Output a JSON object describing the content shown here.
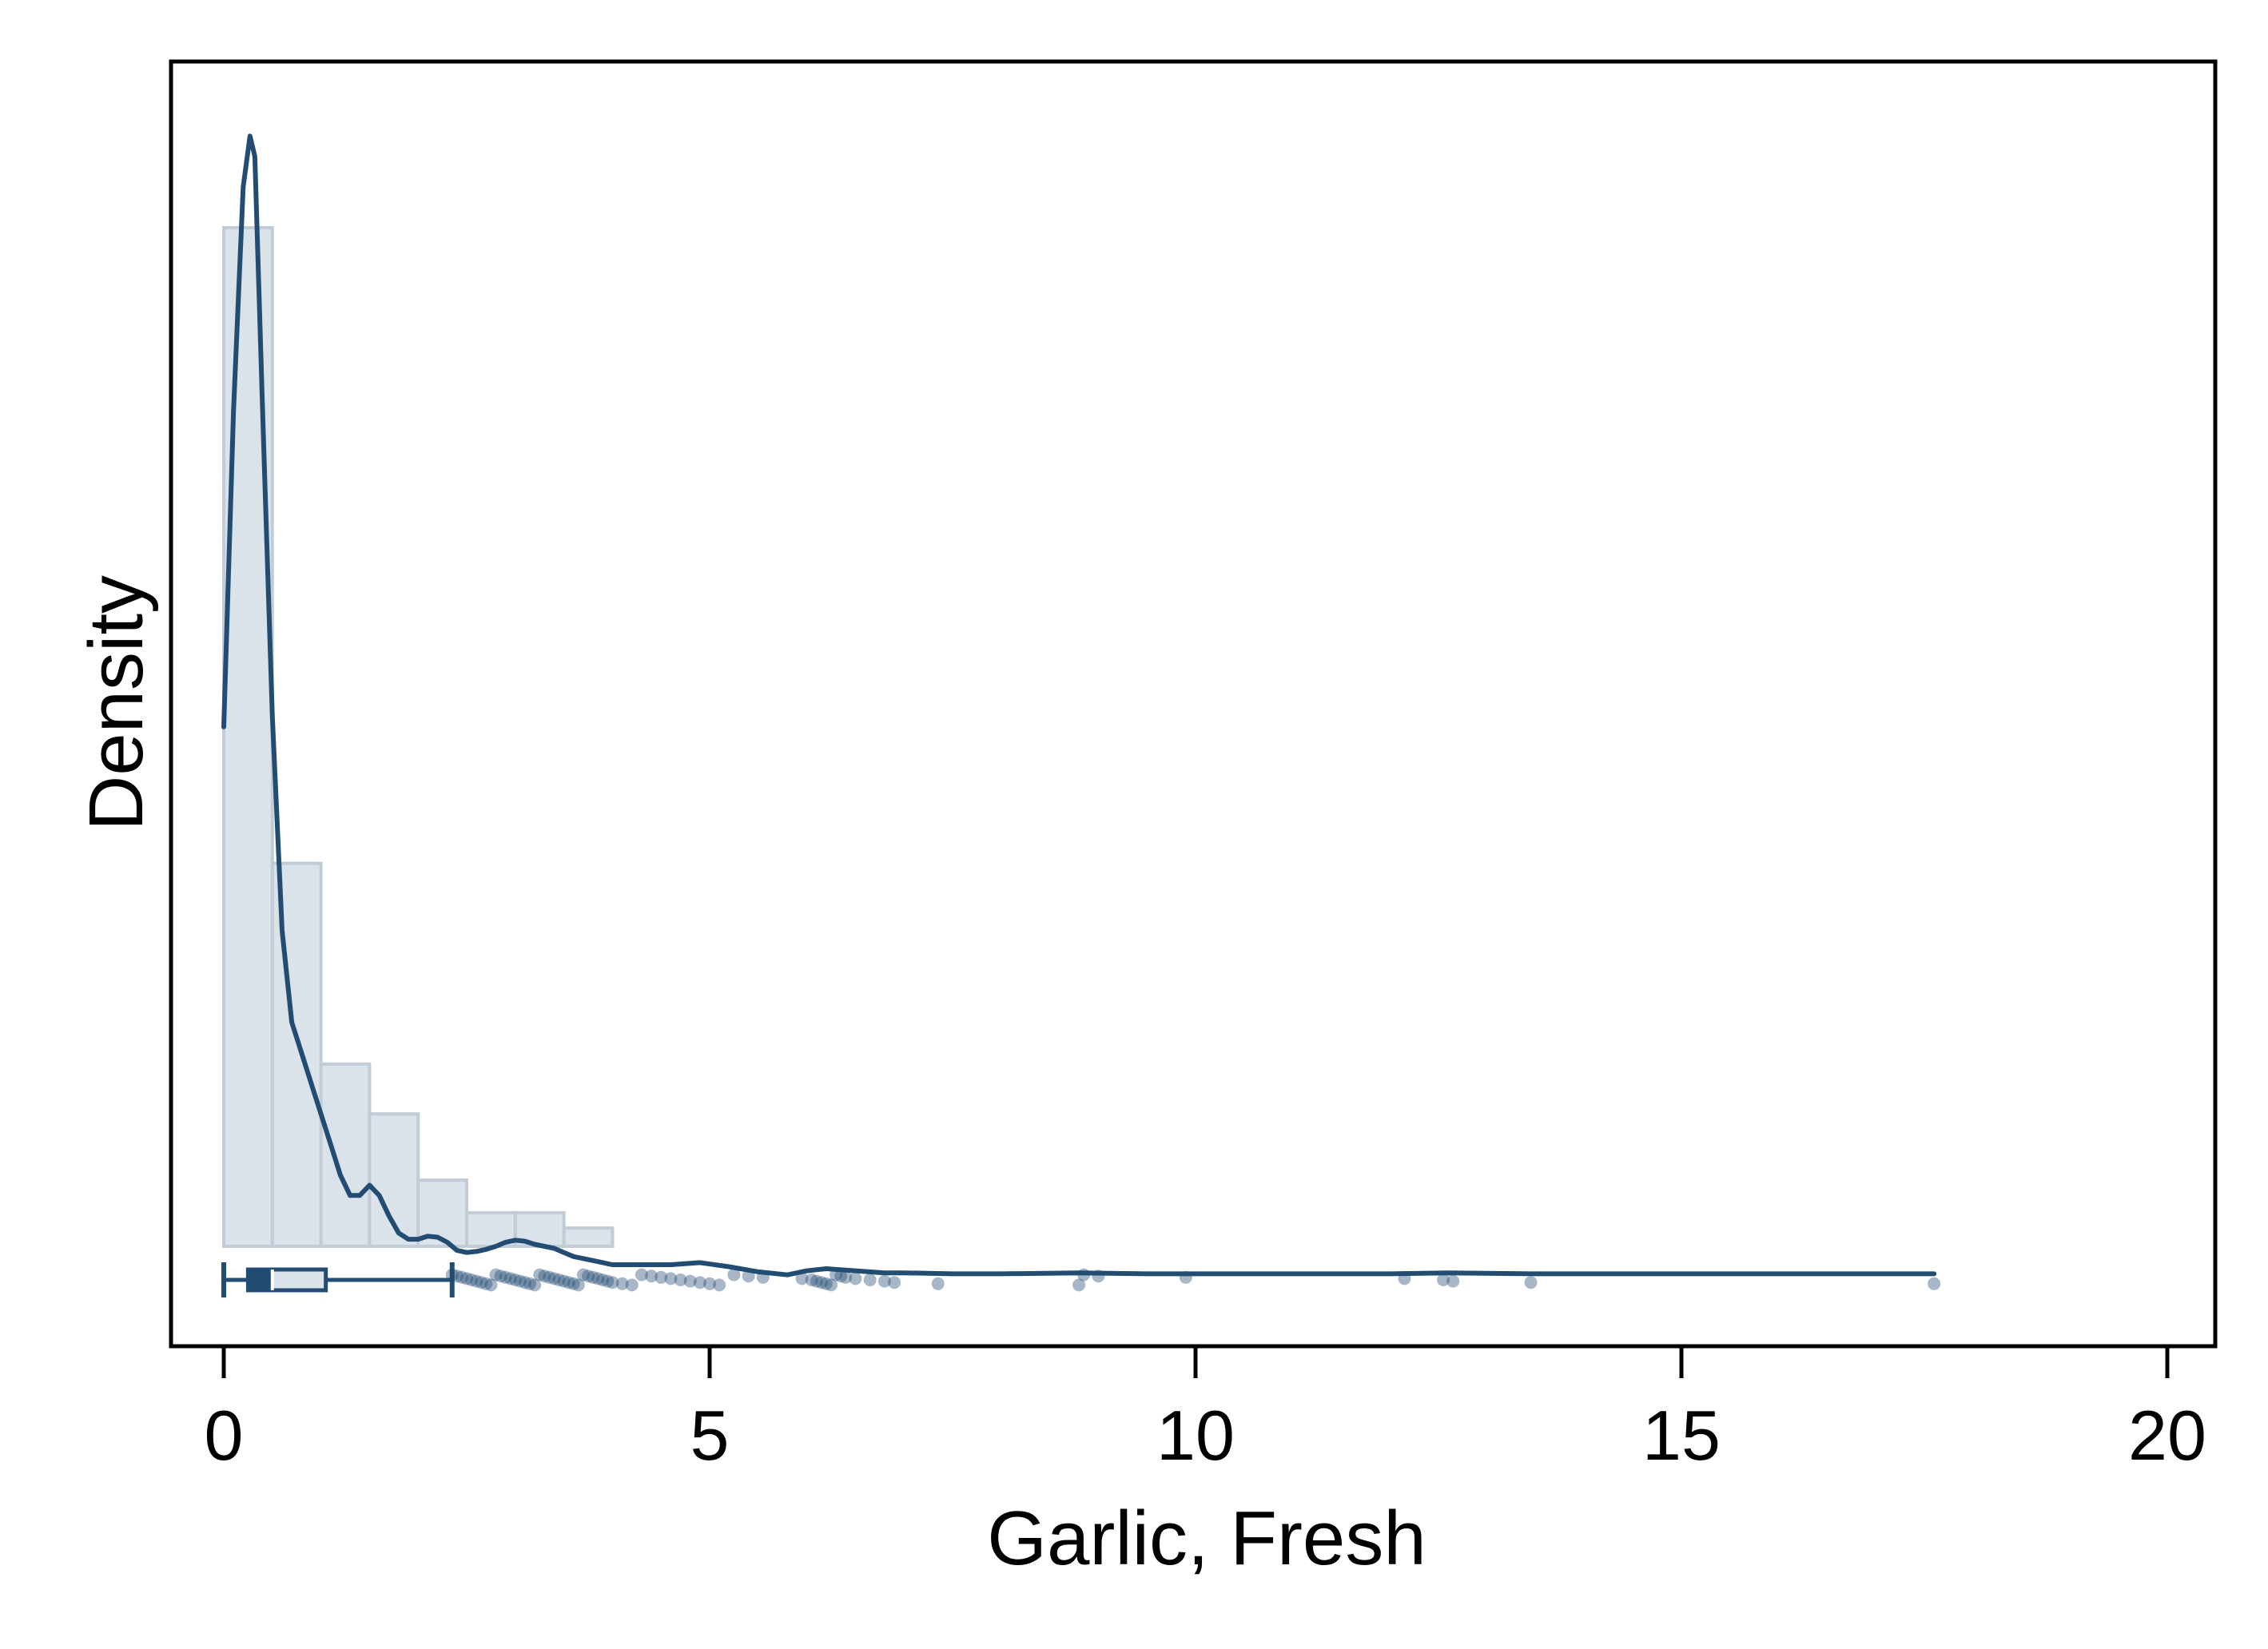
{
  "chart_data": {
    "type": "histogram",
    "xlabel": "Garlic, Fresh",
    "ylabel": "Density",
    "xlim": [
      -0.5,
      20.5
    ],
    "x_ticks": [
      0,
      5,
      10,
      15,
      20
    ],
    "x_tick_labels": [
      "0",
      "5",
      "10",
      "15",
      "20"
    ],
    "y_ticks_shown": false,
    "grid": false,
    "legend": "none",
    "colors": {
      "bar_fill": "#dae2ea",
      "bar_edge": "#c2ccd6",
      "curve": "#234c72",
      "box": "#234c72",
      "points": "#234c72"
    },
    "histogram": {
      "bin_width": 0.5,
      "bin_starts": [
        0,
        0.5,
        1.0,
        1.5,
        2.0,
        2.5,
        3.0,
        3.5
      ],
      "relative_heights": [
        1.0,
        0.376,
        0.179,
        0.13,
        0.065,
        0.033,
        0.033,
        0.018
      ]
    },
    "density_curve": {
      "x": [
        0,
        0.1,
        0.2,
        0.27,
        0.32,
        0.4,
        0.5,
        0.6,
        0.7,
        0.8,
        0.9,
        1.0,
        1.1,
        1.2,
        1.3,
        1.4,
        1.5,
        1.6,
        1.7,
        1.8,
        1.9,
        2.0,
        2.1,
        2.2,
        2.3,
        2.4,
        2.5,
        2.6,
        2.7,
        2.8,
        2.9,
        3.0,
        3.1,
        3.2,
        3.3,
        3.4,
        3.5,
        3.6,
        3.8,
        4.0,
        4.3,
        4.6,
        4.9,
        5.2,
        5.5,
        5.8,
        6.0,
        6.2,
        6.5,
        6.8,
        7.0,
        7.5,
        8.0,
        8.8,
        9.5,
        10.0,
        11.0,
        12.0,
        12.6,
        13.5,
        15.0,
        17.6
      ],
      "relative_density": [
        0.51,
        0.82,
        1.04,
        1.09,
        1.07,
        0.82,
        0.52,
        0.31,
        0.22,
        0.19,
        0.16,
        0.13,
        0.1,
        0.07,
        0.05,
        0.05,
        0.06,
        0.05,
        0.03,
        0.013,
        0.007,
        0.007,
        0.01,
        0.009,
        0.004,
        -0.004,
        -0.006,
        -0.005,
        -0.003,
        0.0,
        0.004,
        0.006,
        0.005,
        0.002,
        0.0,
        -0.002,
        -0.006,
        -0.01,
        -0.014,
        -0.018,
        -0.018,
        -0.018,
        -0.016,
        -0.02,
        -0.025,
        -0.028,
        -0.024,
        -0.022,
        -0.024,
        -0.026,
        -0.026,
        -0.027,
        -0.027,
        -0.026,
        -0.027,
        -0.027,
        -0.027,
        -0.027,
        -0.026,
        -0.027,
        -0.027,
        -0.027
      ]
    },
    "box_plot": {
      "min": 0,
      "q1": 0.25,
      "median": 0.5,
      "q3": 1.05,
      "upper_whisker": 2.35
    },
    "outliers_x": [
      2.35,
      2.4,
      2.45,
      2.5,
      2.55,
      2.6,
      2.65,
      2.7,
      2.75,
      2.8,
      2.85,
      2.9,
      2.95,
      3.0,
      3.05,
      3.1,
      3.15,
      3.2,
      3.25,
      3.3,
      3.35,
      3.4,
      3.45,
      3.5,
      3.55,
      3.6,
      3.65,
      3.7,
      3.75,
      3.8,
      3.85,
      3.9,
      3.95,
      4.0,
      4.1,
      4.2,
      4.3,
      4.4,
      4.5,
      4.6,
      4.7,
      4.8,
      4.9,
      5.0,
      5.1,
      5.25,
      5.4,
      5.55,
      5.95,
      6.05,
      6.1,
      6.15,
      6.2,
      6.25,
      6.3,
      6.35,
      6.4,
      6.5,
      6.65,
      6.8,
      6.9,
      7.35,
      8.8,
      8.85,
      9.0,
      9.9,
      12.15,
      12.55,
      12.65,
      13.45,
      17.6
    ]
  }
}
